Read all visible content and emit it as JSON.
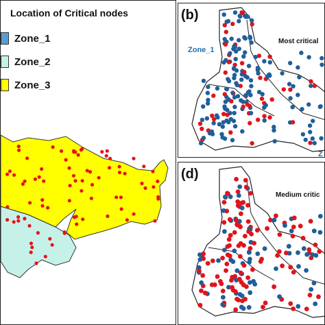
{
  "left_panel": {
    "title": "Location of Critical nodes",
    "legend": [
      {
        "label": "Zone_1",
        "color": "#5b9bd5"
      },
      {
        "label": "Zone_2",
        "color": "#c6f1e8"
      },
      {
        "label": "Zone_3",
        "color": "#ffff00"
      }
    ],
    "node_color": "#e5141b"
  },
  "panel_b": {
    "label": "(b)",
    "note": "Most critical",
    "zone_label": "Zone_1",
    "zone_label_2": "Z",
    "blue_color": "#1f5f9a",
    "red_color": "#e0141b"
  },
  "panel_d": {
    "label": "(d)",
    "note": "Medium critic"
  }
}
